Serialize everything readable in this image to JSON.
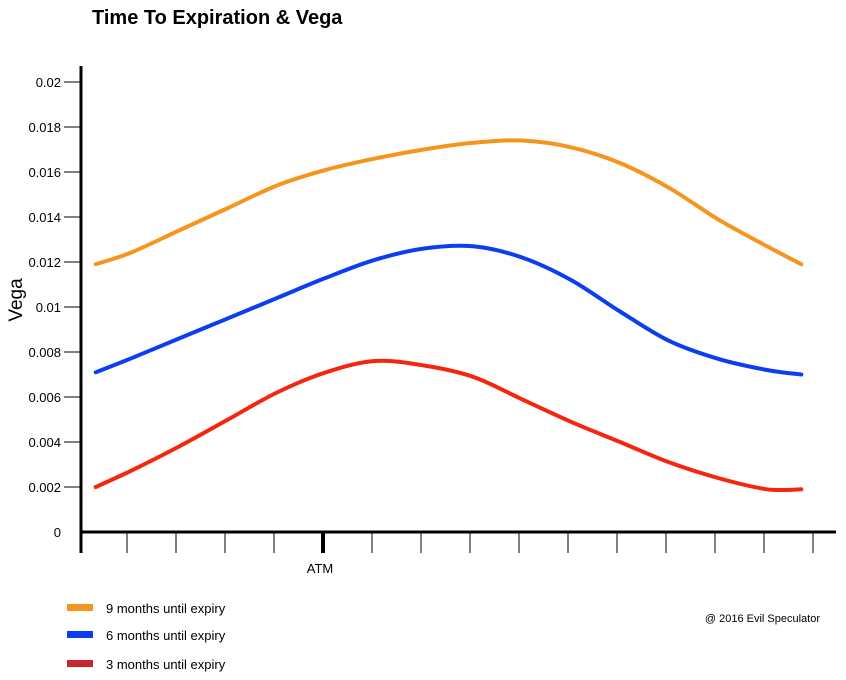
{
  "chart_data": {
    "type": "line",
    "title": "Time To Expiration & Vega",
    "xlabel": "",
    "ylabel": "Vega",
    "x_marker_label": "ATM",
    "x_marker_index": 5,
    "x_tick_count": 15,
    "ylim": [
      0,
      0.0215
    ],
    "y_ticks": [
      {
        "value": 0,
        "label": "0"
      },
      {
        "value": 0.002,
        "label": "0.002"
      },
      {
        "value": 0.004,
        "label": "0.004"
      },
      {
        "value": 0.006,
        "label": "0.006"
      },
      {
        "value": 0.008,
        "label": "0.008"
      },
      {
        "value": 0.01,
        "label": "0.01"
      },
      {
        "value": 0.012,
        "label": "0.012"
      },
      {
        "value": 0.014,
        "label": "0.014"
      },
      {
        "value": 0.016,
        "label": "0.016"
      },
      {
        "value": 0.018,
        "label": "0.018"
      },
      {
        "value": 0.02,
        "label": "0.02"
      }
    ],
    "x": [
      0.3,
      1,
      2,
      3,
      4,
      5,
      6,
      7,
      8,
      9,
      10,
      11,
      12,
      13,
      14,
      14.7
    ],
    "series": [
      {
        "name": "9 months until expiry",
        "color": "#F7941D",
        "values": [
          0.0119,
          0.0124,
          0.0134,
          0.0144,
          0.0154,
          0.0161,
          0.0166,
          0.017,
          0.0173,
          0.0174,
          0.0171,
          0.0164,
          0.0153,
          0.0139,
          0.0127,
          0.0119
        ]
      },
      {
        "name": "6 months until expiry",
        "color": "#0A3EF0",
        "values": [
          0.0071,
          0.0077,
          0.0086,
          0.0095,
          0.0104,
          0.0113,
          0.0121,
          0.0126,
          0.0127,
          0.0122,
          0.0112,
          0.0098,
          0.0085,
          0.0077,
          0.0072,
          0.007
        ]
      },
      {
        "name": "3 months until expiry",
        "color": "#F5260E",
        "values": [
          0.002,
          0.0027,
          0.0038,
          0.005,
          0.0062,
          0.0071,
          0.0076,
          0.0074,
          0.0069,
          0.0059,
          0.0049,
          0.004,
          0.0031,
          0.0024,
          0.0019,
          0.0019
        ]
      }
    ],
    "legend": [
      {
        "label": "9 months until expiry",
        "color": "#F7941D"
      },
      {
        "label": "6 months until expiry",
        "color": "#0A3EF0"
      },
      {
        "label": "3 months until expiry",
        "color": "#C8282D"
      }
    ],
    "annotation": "@ 2016 Evil Speculator"
  }
}
